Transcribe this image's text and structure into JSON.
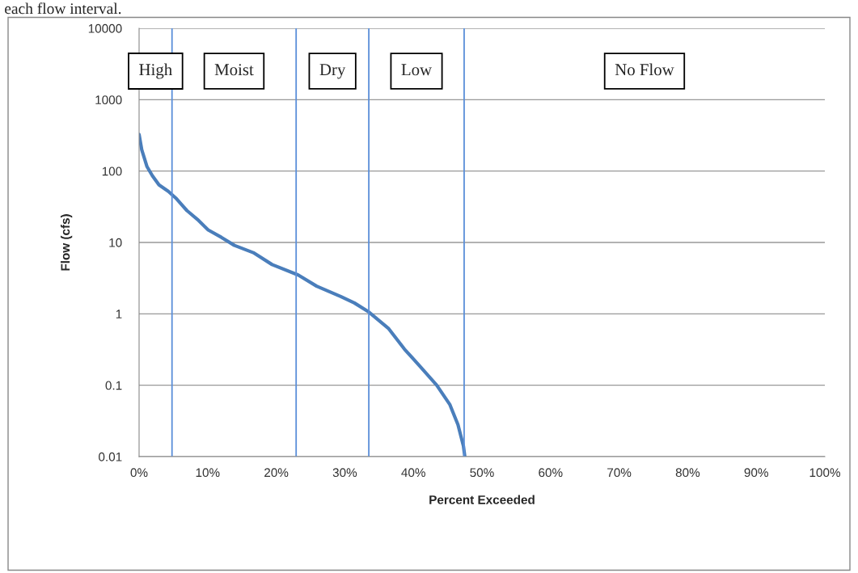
{
  "chart_data": {
    "type": "line",
    "xlabel": "Percent Exceeded",
    "ylabel": "Flow (cfs)",
    "x": [
      0,
      0.39,
      1.16,
      1.94,
      2.9,
      4.26,
      5.34,
      6.97,
      8.52,
      10.07,
      12.0,
      13.9,
      16.65,
      19.4,
      23.2,
      25.9,
      29.4,
      31.4,
      33.5,
      36.4,
      38.7,
      41.05,
      43.4,
      45.3,
      46.5,
      47.3,
      47.5
    ],
    "series": [
      {
        "color": "#4a7ebb",
        "values": [
          325,
          199,
          115,
          86,
          64,
          52,
          42,
          28,
          21,
          15,
          11.8,
          9.1,
          7.2,
          4.9,
          3.5,
          2.44,
          1.75,
          1.42,
          1.06,
          0.62,
          0.32,
          0.18,
          0.1,
          0.054,
          0.028,
          0.014,
          0.01
        ]
      }
    ],
    "log": "y",
    "ylim": [
      0.01,
      10000
    ],
    "yticks": [
      {
        "value": 0.01,
        "label": "0.01"
      },
      {
        "value": 0.1,
        "label": "0.1"
      },
      {
        "value": 1,
        "label": "1"
      },
      {
        "value": 10,
        "label": "10"
      },
      {
        "value": 100,
        "label": "100"
      },
      {
        "value": 1000,
        "label": "1000"
      },
      {
        "value": 10000,
        "label": "10000"
      }
    ],
    "xlim": [
      0,
      100
    ],
    "xticks": [
      {
        "value": 0,
        "label": "0%"
      },
      {
        "value": 10,
        "label": "10%"
      },
      {
        "value": 20,
        "label": "20%"
      },
      {
        "value": 30,
        "label": "30%"
      },
      {
        "value": 40,
        "label": "40%"
      },
      {
        "value": 50,
        "label": "50%"
      },
      {
        "value": 60,
        "label": "60%"
      },
      {
        "value": 70,
        "label": "70%"
      },
      {
        "value": 80,
        "label": "80%"
      },
      {
        "value": 90,
        "label": "90%"
      },
      {
        "value": 100,
        "label": "100%"
      }
    ],
    "grid": "y",
    "marker": "none",
    "line_style": "solid",
    "ref_lines": [
      {
        "axis": "x",
        "value": 4.8,
        "color": "#5b8fd9"
      },
      {
        "axis": "x",
        "value": 22.9,
        "color": "#5b8fd9"
      },
      {
        "axis": "x",
        "value": 33.5,
        "color": "#5b8fd9"
      },
      {
        "axis": "x",
        "value": 47.4,
        "color": "#5b8fd9"
      }
    ],
    "annotations": [
      "each flow interval.",
      "High",
      "Moist",
      "Dry",
      "Low",
      "No Flow"
    ]
  }
}
